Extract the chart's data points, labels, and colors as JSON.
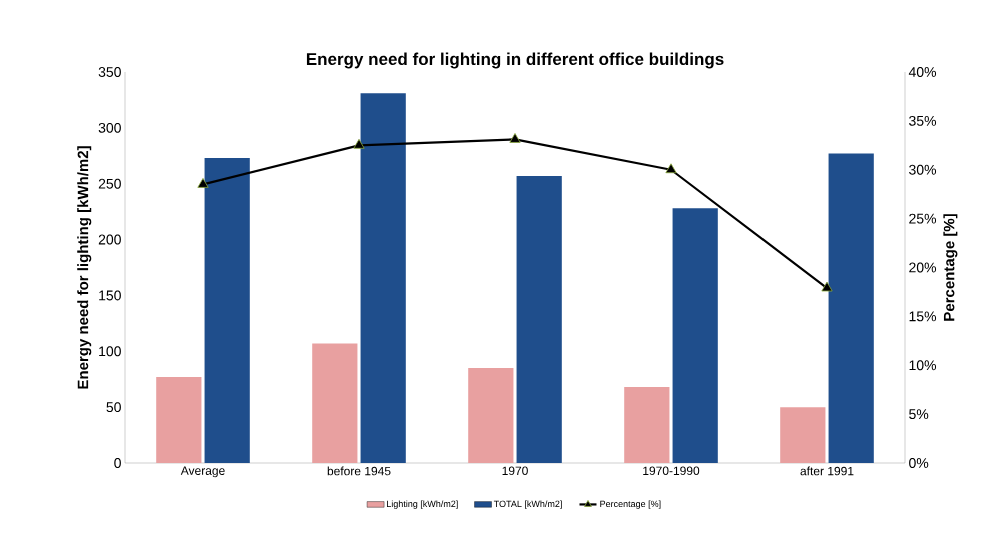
{
  "chart_data": {
    "type": "bar",
    "title": "Energy need for lighting in different office buildings",
    "ylabel": "Energy need for lighting [kWh/m2]",
    "y2label": "Percentage [%]",
    "categories": [
      "Average",
      "before 1945",
      "1970",
      "1970-1990",
      "after 1991"
    ],
    "series": [
      {
        "name": "Lighting [kWh/m2]",
        "color": "#e8a0a0",
        "values": [
          77,
          107,
          85,
          68,
          50
        ]
      },
      {
        "name": "TOTAL [kWh/m2]",
        "color": "#1f4e8c",
        "values": [
          273,
          331,
          257,
          228,
          277
        ]
      },
      {
        "name": "Percentage [%]",
        "type": "line",
        "axis": "y2",
        "color": "#000000",
        "marker": "triangle",
        "values": [
          28.5,
          32.5,
          33.1,
          30.0,
          17.9
        ]
      }
    ],
    "ylim": [
      0,
      350
    ],
    "yticks": [
      0,
      50,
      100,
      150,
      200,
      250,
      300,
      350
    ],
    "y2lim": [
      0,
      40
    ],
    "y2ticks": [
      {
        "value": 0,
        "label": "0%"
      },
      {
        "value": 5,
        "label": "5%"
      },
      {
        "value": 10,
        "label": "10%"
      },
      {
        "value": 15,
        "label": "15%"
      },
      {
        "value": 20,
        "label": "20%"
      },
      {
        "value": 25,
        "label": "25%"
      },
      {
        "value": 30,
        "label": "30%"
      },
      {
        "value": 35,
        "label": "35%"
      },
      {
        "value": 40,
        "label": "40%"
      }
    ],
    "legend": "bottom"
  }
}
